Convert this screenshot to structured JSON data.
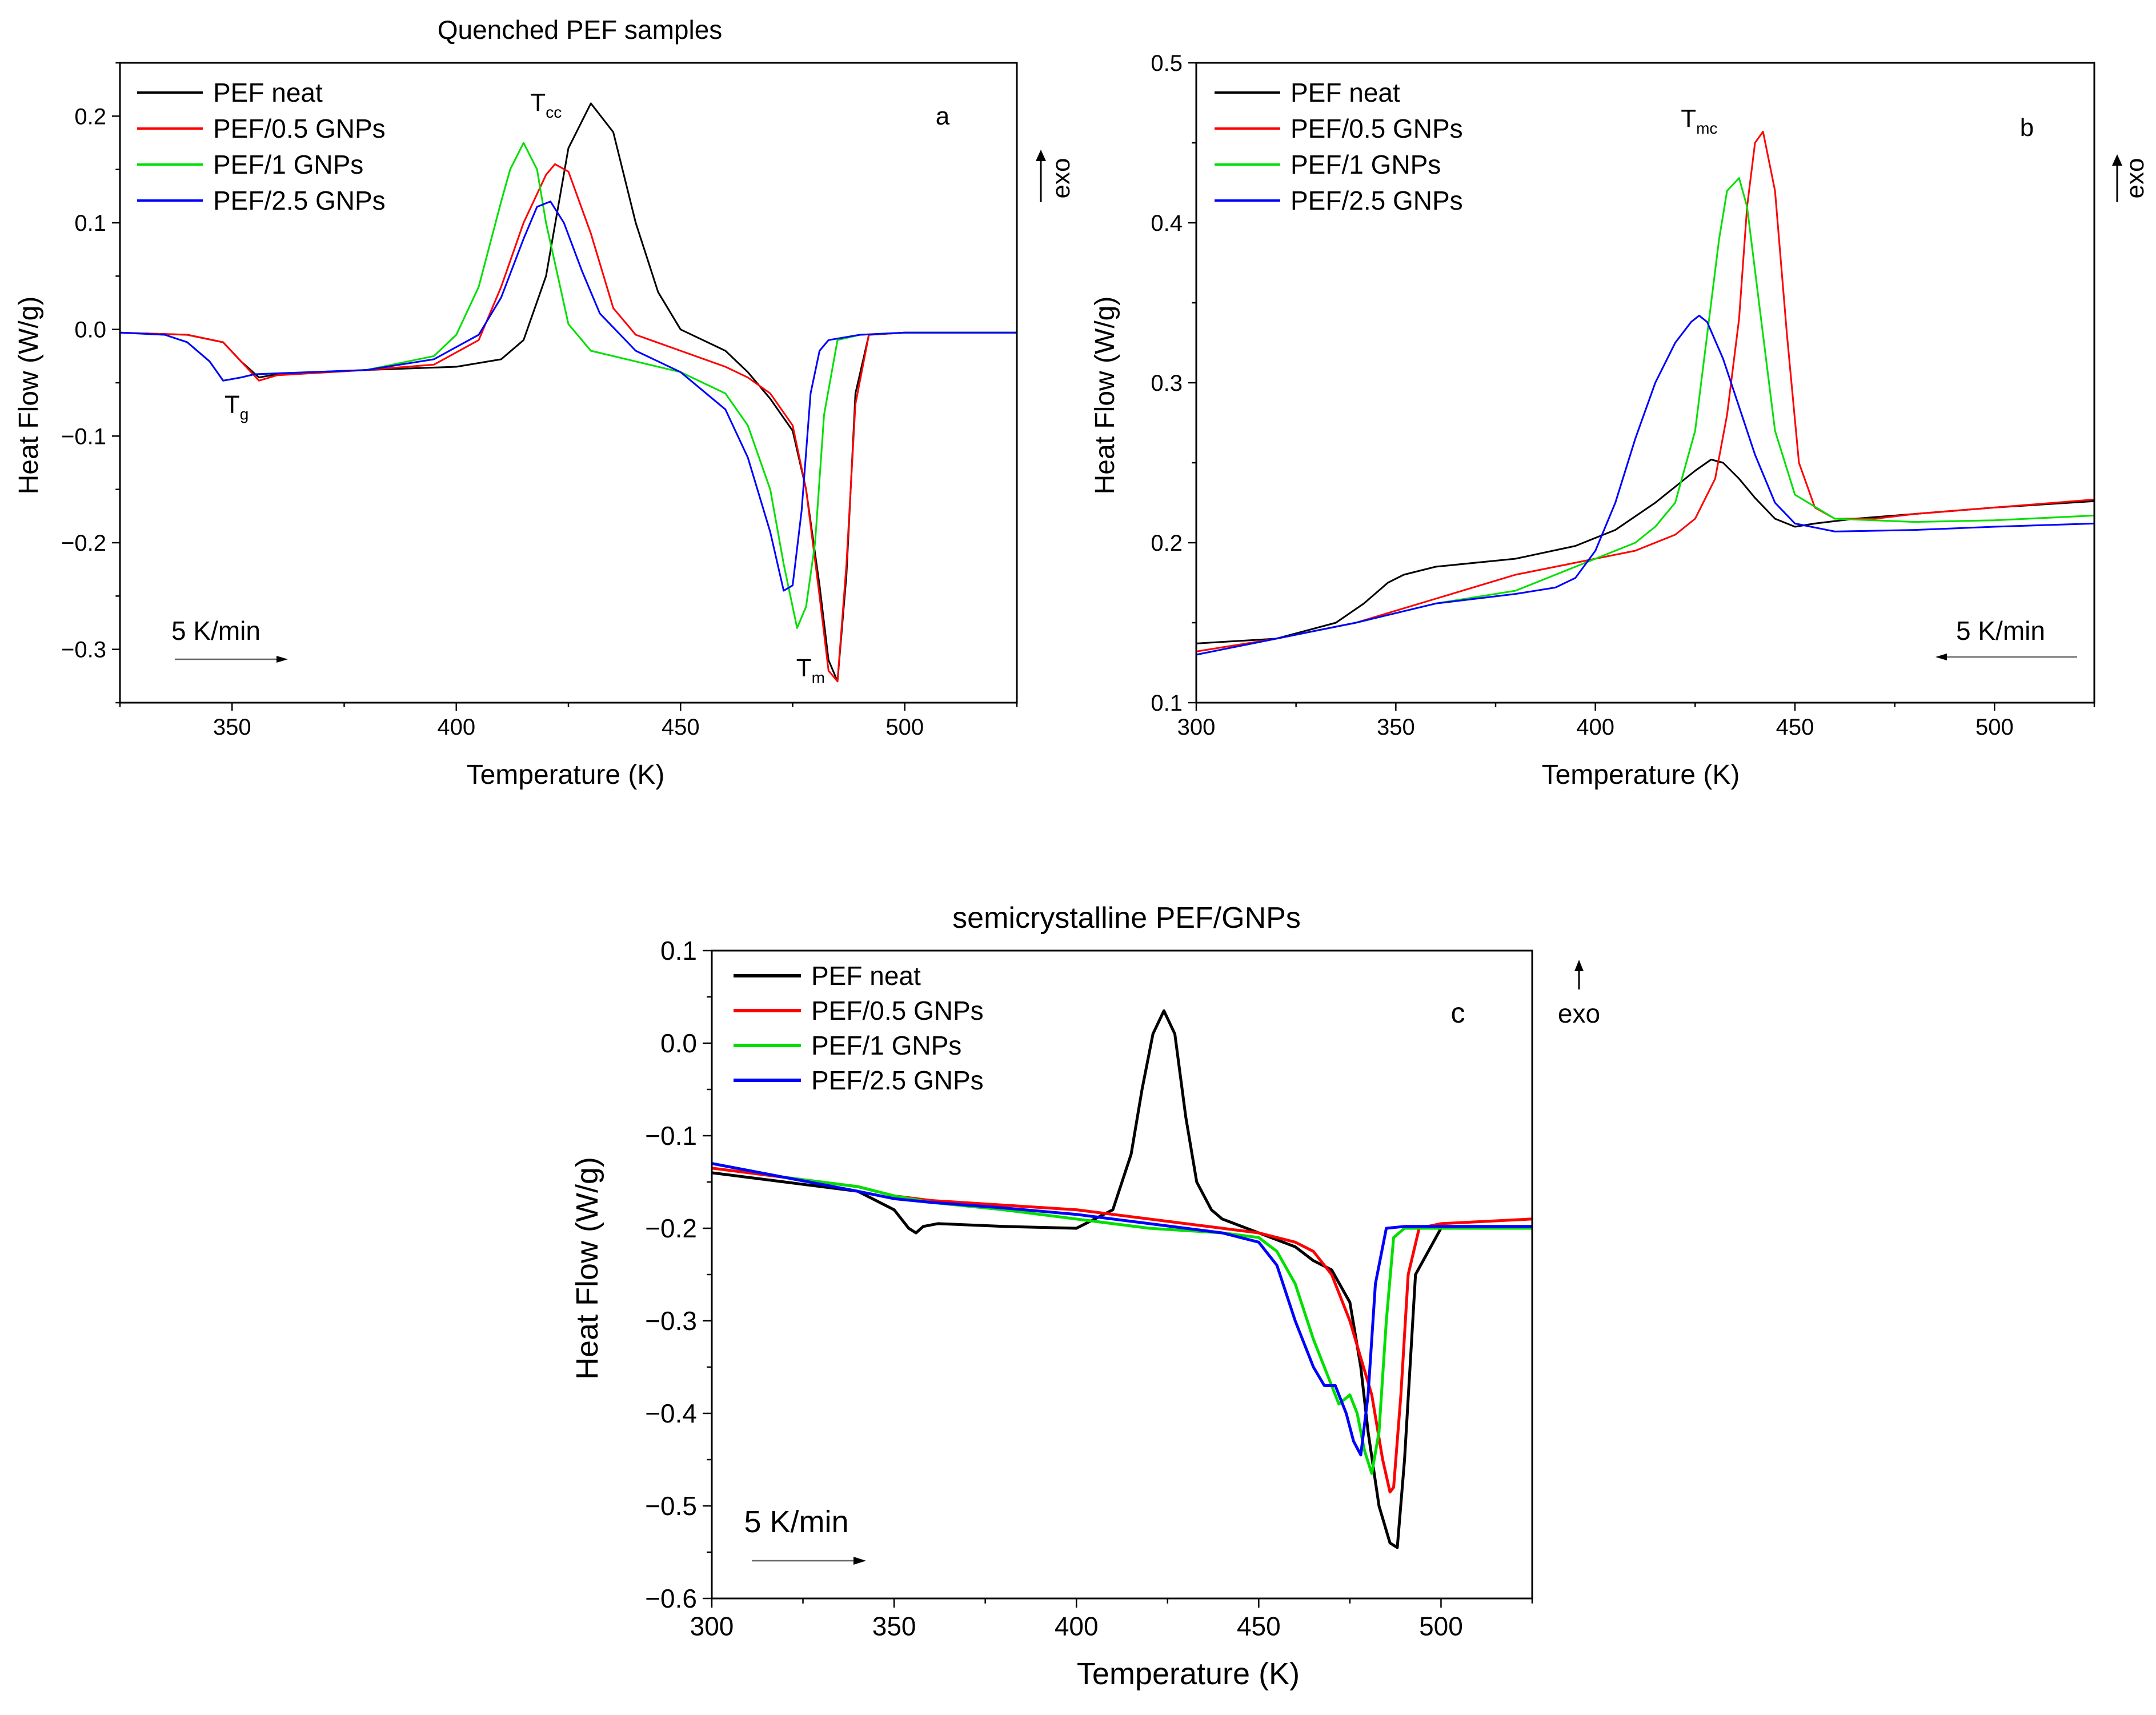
{
  "series_colors": {
    "black": "#000000",
    "red": "#ff0000",
    "green": "#00e000",
    "blue": "#0000ff"
  },
  "chart_data": [
    {
      "id": "a",
      "type": "line",
      "title": "Quenched PEF samples",
      "panel_label": "a",
      "xlabel": "Temperature (K)",
      "ylabel": "Heat Flow (W/g)",
      "xlim": [
        325,
        525
      ],
      "ylim": [
        -0.35,
        0.25
      ],
      "xticks": [
        350,
        400,
        450,
        500
      ],
      "xtick_labels": [
        "350",
        "400",
        "450",
        "500"
      ],
      "yticks": [
        -0.3,
        -0.2,
        -0.1,
        0.0,
        0.1,
        0.2
      ],
      "ytick_labels": [
        "−0.3",
        "−0.2",
        "−0.1",
        "0.0",
        "0.1",
        "0.2"
      ],
      "exo_label": "exo",
      "rate_label": "5 K/min",
      "rate_direction": "heating",
      "annotations": [
        {
          "main": "T",
          "sub": "cc",
          "x": 420,
          "y": 0.205
        },
        {
          "main": "T",
          "sub": "g",
          "x": 351,
          "y": -0.078
        },
        {
          "main": "T",
          "sub": "m",
          "x": 479,
          "y": -0.325
        }
      ],
      "series": [
        {
          "name": "PEF neat",
          "color": "black",
          "x": [
            325,
            340,
            348,
            352,
            356,
            360,
            380,
            400,
            410,
            415,
            420,
            425,
            430,
            435,
            440,
            445,
            450,
            460,
            465,
            470,
            475,
            478,
            481,
            483,
            485,
            487,
            489,
            492,
            500,
            510,
            525
          ],
          "y": [
            -0.003,
            -0.005,
            -0.012,
            -0.03,
            -0.045,
            -0.042,
            -0.038,
            -0.035,
            -0.028,
            -0.01,
            0.05,
            0.17,
            0.212,
            0.185,
            0.1,
            0.035,
            0.0,
            -0.02,
            -0.04,
            -0.065,
            -0.095,
            -0.15,
            -0.24,
            -0.31,
            -0.33,
            -0.23,
            -0.06,
            -0.005,
            -0.003,
            -0.003,
            -0.003
          ]
        },
        {
          "name": "PEF/0.5 GNPs",
          "color": "red",
          "x": [
            325,
            340,
            348,
            352,
            356,
            360,
            380,
            395,
            405,
            410,
            415,
            420,
            422,
            425,
            430,
            435,
            440,
            450,
            460,
            465,
            470,
            475,
            478,
            481,
            483,
            485,
            487,
            489,
            492,
            500,
            525
          ],
          "y": [
            -0.003,
            -0.005,
            -0.012,
            -0.03,
            -0.048,
            -0.043,
            -0.038,
            -0.033,
            -0.01,
            0.04,
            0.1,
            0.145,
            0.155,
            0.148,
            0.09,
            0.02,
            -0.005,
            -0.02,
            -0.035,
            -0.045,
            -0.06,
            -0.09,
            -0.15,
            -0.25,
            -0.32,
            -0.33,
            -0.22,
            -0.07,
            -0.005,
            -0.003,
            -0.003
          ]
        },
        {
          "name": "PEF/1 GNPs",
          "color": "green",
          "x": [
            325,
            335,
            340,
            345,
            348,
            352,
            355,
            380,
            395,
            400,
            405,
            410,
            412,
            415,
            418,
            420,
            425,
            430,
            440,
            450,
            455,
            460,
            465,
            470,
            473,
            476,
            478,
            480,
            482,
            485,
            490,
            500,
            525
          ],
          "y": [
            -0.003,
            -0.005,
            -0.012,
            -0.03,
            -0.048,
            -0.045,
            -0.042,
            -0.038,
            -0.025,
            -0.005,
            0.04,
            0.12,
            0.15,
            0.175,
            0.15,
            0.1,
            0.005,
            -0.02,
            -0.03,
            -0.04,
            -0.05,
            -0.06,
            -0.09,
            -0.15,
            -0.22,
            -0.28,
            -0.26,
            -0.2,
            -0.08,
            -0.01,
            -0.005,
            -0.003,
            -0.003
          ]
        },
        {
          "name": "PEF/2.5 GNPs",
          "color": "blue",
          "x": [
            325,
            335,
            340,
            345,
            348,
            352,
            355,
            380,
            395,
            405,
            410,
            415,
            418,
            421,
            424,
            428,
            432,
            440,
            450,
            460,
            465,
            470,
            473,
            475,
            477,
            479,
            481,
            483,
            490,
            500,
            525
          ],
          "y": [
            -0.003,
            -0.005,
            -0.012,
            -0.03,
            -0.048,
            -0.045,
            -0.042,
            -0.038,
            -0.028,
            -0.005,
            0.03,
            0.085,
            0.115,
            0.12,
            0.1,
            0.055,
            0.015,
            -0.02,
            -0.04,
            -0.075,
            -0.12,
            -0.19,
            -0.245,
            -0.24,
            -0.17,
            -0.06,
            -0.02,
            -0.01,
            -0.005,
            -0.003,
            -0.003
          ]
        }
      ]
    },
    {
      "id": "b",
      "type": "line",
      "title": "",
      "panel_label": "b",
      "xlabel": "Temperature (K)",
      "ylabel": "Heat Flow (W/g)",
      "xlim": [
        300,
        525
      ],
      "ylim": [
        0.1,
        0.5
      ],
      "xticks": [
        300,
        350,
        400,
        450,
        500
      ],
      "xtick_labels": [
        "300",
        "350",
        "400",
        "450",
        "500"
      ],
      "yticks": [
        0.1,
        0.2,
        0.3,
        0.4,
        0.5
      ],
      "ytick_labels": [
        "0.1",
        "0.2",
        "0.3",
        "0.4",
        "0.5"
      ],
      "exo_label": "exo",
      "rate_label": "5 K/min",
      "rate_direction": "cooling",
      "annotations": [
        {
          "main": "T",
          "sub": "mc",
          "x": 426,
          "y": 0.46
        }
      ],
      "series": [
        {
          "name": "PEF neat",
          "color": "black",
          "x": [
            300,
            320,
            335,
            342,
            348,
            352,
            360,
            380,
            395,
            405,
            415,
            420,
            425,
            429,
            432,
            436,
            440,
            445,
            450,
            455,
            465,
            480,
            500,
            525
          ],
          "y": [
            0.137,
            0.14,
            0.15,
            0.162,
            0.175,
            0.18,
            0.185,
            0.19,
            0.198,
            0.208,
            0.225,
            0.235,
            0.245,
            0.252,
            0.25,
            0.24,
            0.228,
            0.215,
            0.21,
            0.212,
            0.215,
            0.218,
            0.222,
            0.226
          ]
        },
        {
          "name": "PEF/0.5 GNPs",
          "color": "red",
          "x": [
            300,
            320,
            340,
            360,
            380,
            400,
            410,
            420,
            425,
            430,
            433,
            436,
            438,
            440,
            442,
            445,
            448,
            451,
            455,
            460,
            470,
            480,
            500,
            525
          ],
          "y": [
            0.132,
            0.14,
            0.15,
            0.165,
            0.18,
            0.19,
            0.195,
            0.205,
            0.215,
            0.24,
            0.28,
            0.34,
            0.41,
            0.45,
            0.457,
            0.42,
            0.33,
            0.25,
            0.222,
            0.215,
            0.215,
            0.218,
            0.222,
            0.227
          ]
        },
        {
          "name": "PEF/1 GNPs",
          "color": "green",
          "x": [
            300,
            320,
            340,
            360,
            380,
            400,
            410,
            415,
            420,
            425,
            428,
            431,
            433,
            436,
            438,
            441,
            445,
            450,
            460,
            480,
            500,
            525
          ],
          "y": [
            0.13,
            0.14,
            0.15,
            0.162,
            0.17,
            0.19,
            0.2,
            0.21,
            0.225,
            0.27,
            0.33,
            0.39,
            0.42,
            0.428,
            0.41,
            0.35,
            0.27,
            0.23,
            0.215,
            0.213,
            0.214,
            0.217
          ]
        },
        {
          "name": "PEF/2.5 GNPs",
          "color": "blue",
          "x": [
            300,
            320,
            340,
            360,
            380,
            390,
            395,
            400,
            405,
            410,
            415,
            420,
            424,
            426,
            428,
            432,
            436,
            440,
            445,
            450,
            460,
            480,
            500,
            525
          ],
          "y": [
            0.13,
            0.14,
            0.15,
            0.162,
            0.168,
            0.172,
            0.178,
            0.195,
            0.225,
            0.265,
            0.3,
            0.325,
            0.338,
            0.342,
            0.338,
            0.315,
            0.285,
            0.255,
            0.225,
            0.212,
            0.207,
            0.208,
            0.21,
            0.212
          ]
        }
      ]
    },
    {
      "id": "c",
      "type": "line",
      "title": "semicrystalline PEF/GNPs",
      "panel_label": "c",
      "xlabel": "Temperature (K)",
      "ylabel": "Heat Flow (W/g)",
      "xlim": [
        300,
        525
      ],
      "ylim": [
        -0.6,
        0.1
      ],
      "xticks": [
        300,
        350,
        400,
        450,
        500
      ],
      "xtick_labels": [
        "300",
        "350",
        "400",
        "450",
        "500"
      ],
      "yticks": [
        -0.6,
        -0.5,
        -0.4,
        -0.3,
        -0.2,
        -0.1,
        0.0,
        0.1
      ],
      "ytick_labels": [
        "−0.6",
        "−0.5",
        "−0.4",
        "−0.3",
        "−0.2",
        "−0.1",
        "0.0",
        "0.1"
      ],
      "exo_label": "exo",
      "rate_label": "5 K/min",
      "rate_direction": "heating",
      "annotations": [],
      "series": [
        {
          "name": "PEF neat",
          "color": "black",
          "x": [
            300,
            320,
            340,
            350,
            354,
            356,
            358,
            362,
            380,
            400,
            410,
            415,
            418,
            421,
            424,
            427,
            430,
            433,
            437,
            440,
            450,
            460,
            465,
            470,
            475,
            478,
            480,
            483,
            486,
            488,
            490,
            493,
            500,
            525
          ],
          "y": [
            -0.14,
            -0.15,
            -0.16,
            -0.18,
            -0.2,
            -0.205,
            -0.198,
            -0.195,
            -0.198,
            -0.2,
            -0.18,
            -0.12,
            -0.05,
            0.01,
            0.035,
            0.01,
            -0.08,
            -0.15,
            -0.18,
            -0.19,
            -0.205,
            -0.22,
            -0.235,
            -0.245,
            -0.28,
            -0.35,
            -0.42,
            -0.5,
            -0.54,
            -0.545,
            -0.45,
            -0.25,
            -0.2,
            -0.2
          ]
        },
        {
          "name": "PEF/0.5 GNPs",
          "color": "red",
          "x": [
            300,
            320,
            340,
            350,
            360,
            380,
            400,
            420,
            440,
            450,
            460,
            465,
            470,
            475,
            478,
            481,
            484,
            486,
            487,
            489,
            491,
            494,
            500,
            525
          ],
          "y": [
            -0.135,
            -0.145,
            -0.155,
            -0.165,
            -0.17,
            -0.175,
            -0.18,
            -0.19,
            -0.2,
            -0.205,
            -0.215,
            -0.225,
            -0.25,
            -0.3,
            -0.34,
            -0.38,
            -0.45,
            -0.485,
            -0.48,
            -0.38,
            -0.25,
            -0.2,
            -0.195,
            -0.19
          ]
        },
        {
          "name": "PEF/1 GNPs",
          "color": "green",
          "x": [
            300,
            320,
            340,
            350,
            360,
            380,
            400,
            420,
            440,
            450,
            455,
            460,
            465,
            470,
            472,
            475,
            477,
            479,
            481,
            483,
            485,
            487,
            490,
            500,
            525
          ],
          "y": [
            -0.13,
            -0.145,
            -0.155,
            -0.165,
            -0.172,
            -0.18,
            -0.19,
            -0.2,
            -0.205,
            -0.21,
            -0.225,
            -0.26,
            -0.32,
            -0.37,
            -0.39,
            -0.38,
            -0.4,
            -0.44,
            -0.465,
            -0.42,
            -0.3,
            -0.21,
            -0.2,
            -0.2,
            -0.2
          ]
        },
        {
          "name": "PEF/2.5 GNPs",
          "color": "blue",
          "x": [
            300,
            320,
            340,
            350,
            360,
            380,
            400,
            420,
            440,
            450,
            455,
            460,
            465,
            468,
            471,
            474,
            476,
            478,
            480,
            482,
            485,
            490,
            500,
            525
          ],
          "y": [
            -0.13,
            -0.145,
            -0.16,
            -0.168,
            -0.172,
            -0.178,
            -0.185,
            -0.195,
            -0.205,
            -0.215,
            -0.24,
            -0.3,
            -0.35,
            -0.37,
            -0.37,
            -0.4,
            -0.43,
            -0.445,
            -0.38,
            -0.26,
            -0.2,
            -0.198,
            -0.198,
            -0.198
          ]
        }
      ]
    }
  ]
}
